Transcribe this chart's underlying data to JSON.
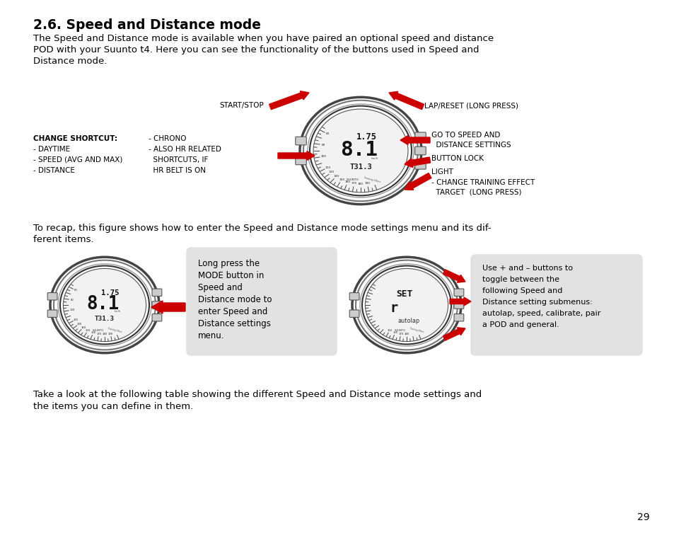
{
  "title": "2.6. Speed and Distance mode",
  "bg_color": "#ffffff",
  "text_color": "#000000",
  "para1_lines": [
    "The Speed and Distance mode is available when you have paired an optional speed and distance",
    "POD with your Suunto t4. Here you can see the functionality of the buttons used in Speed and",
    "Distance mode."
  ],
  "para2_lines": [
    "To recap, this figure shows how to enter the Speed and Distance mode settings menu and its dif-",
    "ferent items."
  ],
  "para3_lines": [
    "Take a look at the following table showing the different Speed and Distance mode settings and",
    "the items you can define in them."
  ],
  "page_number": "29",
  "top_label": "START/STOP",
  "top_right_label": "LAP/RESET (LONG PRESS)",
  "right_label1a": "GO TO SPEED AND",
  "right_label1b": "  DISTANCE SETTINGS",
  "right_label2": "BUTTON LOCK",
  "right_label3": "LIGHT",
  "right_label4a": "- CHANGE TRAINING EFFECT",
  "right_label4b": "  TARGET  (LONG PRESS)",
  "left_col1": [
    "CHANGE SHORTCUT:",
    "- DAYTIME",
    "- SPEED (AVG AND MAX)",
    "- DISTANCE"
  ],
  "left_col2": [
    "- CHRONO",
    "- ALSO HR RELATED",
    "  SHORTCUTS, IF",
    "  HR BELT IS ON"
  ],
  "watch_display1": "1.75",
  "watch_display2": "8.1",
  "watch_display3": "T31.3",
  "watch_display_set": "SET",
  "watch_display_r": "r",
  "watch_display_autolap": "autolap",
  "callout1_lines": [
    "Long press the",
    "MODE button in",
    "Speed and",
    "Distance mode to",
    "enter Speed and",
    "Distance settings",
    "menu."
  ],
  "callout2_lines": [
    "Use + and – buttons to",
    "toggle between the",
    "following Speed and",
    "Distance setting submenus:",
    "autolap, speed, calibrate, pair",
    "a POD and general."
  ],
  "arrow_color": "#cc0000",
  "callout_bg": "#e2e2e2"
}
